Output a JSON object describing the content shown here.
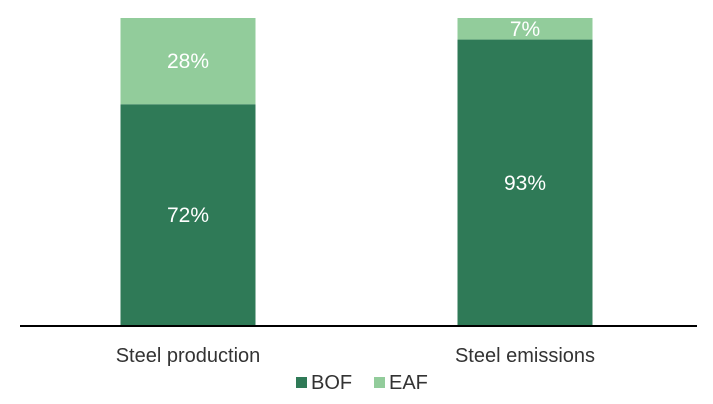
{
  "chart_data": {
    "type": "bar",
    "stacked": true,
    "categories": [
      "Steel production",
      "Steel emissions"
    ],
    "series": [
      {
        "name": "BOF",
        "values": [
          72,
          93
        ],
        "labels": [
          "72%",
          "93%"
        ],
        "color": "#2f7a57"
      },
      {
        "name": "EAF",
        "values": [
          28,
          7
        ],
        "labels": [
          "28%",
          "7%"
        ],
        "color": "#92cc9b"
      }
    ],
    "ylim": [
      0,
      100
    ],
    "grid": false,
    "legend_position": "bottom"
  }
}
